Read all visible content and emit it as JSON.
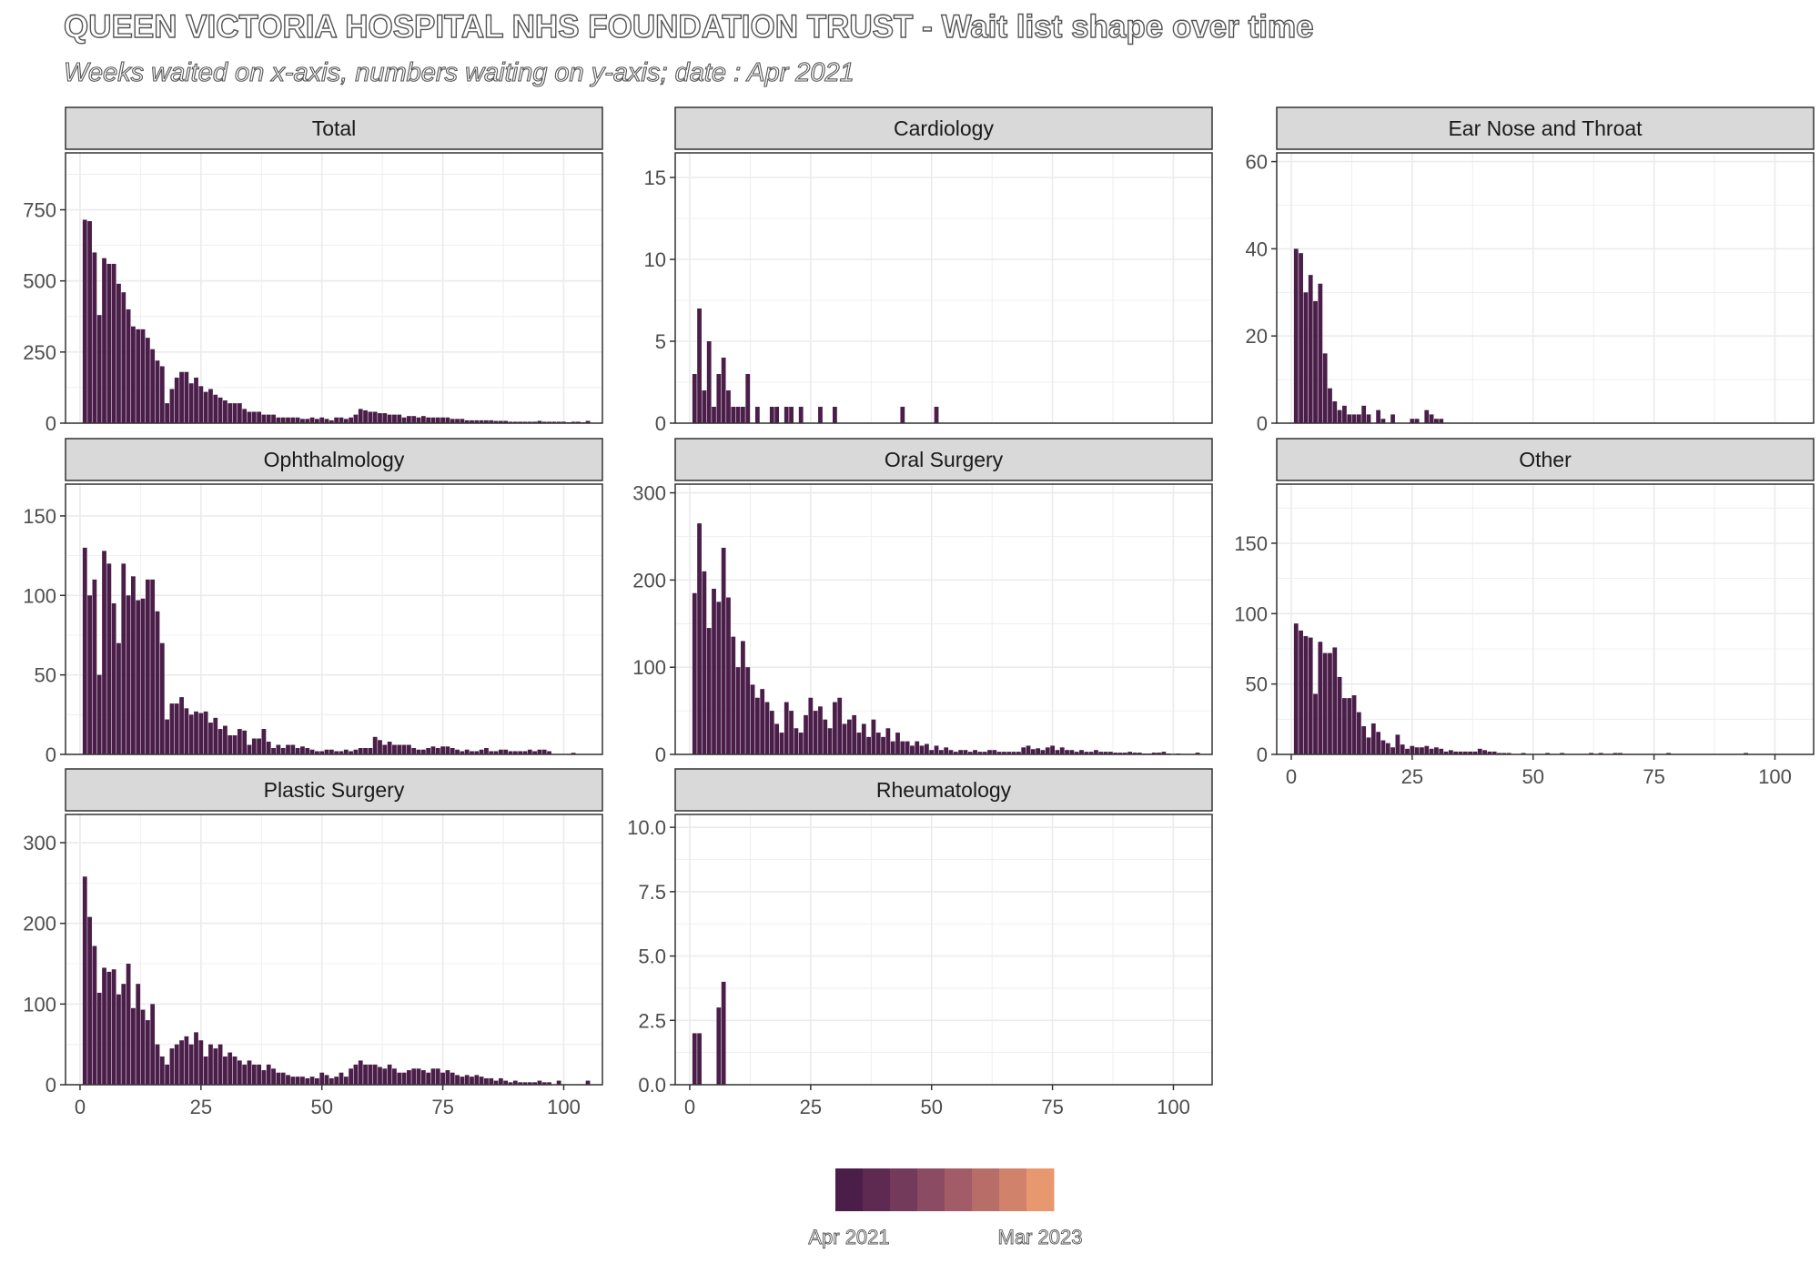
{
  "title": "QUEEN VICTORIA HOSPITAL NHS FOUNDATION TRUST - Wait list shape over time",
  "subtitle": "Weeks waited on x-axis, numbers waiting on y-axis; date : Apr 2021",
  "colors": {
    "bar": "#4a1e48",
    "strip_bg": "#d9d9d9",
    "grid": "#ebebeb",
    "panel_border": "#333333"
  },
  "legend": {
    "start_label": "Apr 2021",
    "end_label": "Mar 2023",
    "colors": [
      "#4a1e48",
      "#5e2a52",
      "#743a5c",
      "#8a4b63",
      "#a15c67",
      "#b86e68",
      "#d0826b",
      "#e8986e"
    ]
  },
  "chart_data": {
    "type": "bar",
    "layout": "facet-wrap-3-columns",
    "x_axis": {
      "range": [
        -3,
        108
      ],
      "ticks": [
        0,
        25,
        50,
        75,
        100
      ]
    },
    "grid": true,
    "legend_position": "bottom",
    "panels": [
      {
        "name": "Total",
        "ylim": [
          0,
          950
        ],
        "yticks": [
          0,
          250,
          500,
          750
        ],
        "x": [
          1,
          2,
          3,
          4,
          5,
          6,
          7,
          8,
          9,
          10,
          11,
          12,
          13,
          14,
          15,
          16,
          17,
          18,
          19,
          20,
          21,
          22,
          23,
          24,
          25,
          26,
          27,
          28,
          29,
          30,
          31,
          32,
          33,
          34,
          35,
          36,
          37,
          38,
          39,
          40,
          41,
          42,
          43,
          44,
          45,
          46,
          47,
          48,
          49,
          50,
          51,
          52,
          53,
          54,
          55,
          56,
          57,
          58,
          59,
          60,
          61,
          62,
          63,
          64,
          65,
          66,
          67,
          68,
          69,
          70,
          71,
          72,
          73,
          74,
          75,
          76,
          77,
          78,
          79,
          80,
          81,
          82,
          83,
          84,
          85,
          86,
          87,
          88,
          89,
          90,
          91,
          92,
          93,
          94,
          95,
          96,
          97,
          98,
          99,
          100,
          101,
          102,
          103,
          104,
          105
        ],
        "values": [
          715,
          710,
          600,
          380,
          580,
          560,
          560,
          490,
          460,
          400,
          340,
          330,
          330,
          300,
          260,
          220,
          200,
          70,
          120,
          160,
          180,
          180,
          140,
          160,
          130,
          110,
          120,
          100,
          90,
          80,
          70,
          70,
          70,
          50,
          40,
          40,
          40,
          30,
          30,
          30,
          20,
          20,
          20,
          20,
          20,
          15,
          15,
          20,
          15,
          20,
          15,
          10,
          20,
          20,
          15,
          20,
          30,
          50,
          45,
          40,
          40,
          35,
          35,
          30,
          30,
          30,
          20,
          25,
          25,
          20,
          25,
          20,
          20,
          20,
          20,
          20,
          15,
          15,
          15,
          10,
          10,
          10,
          10,
          10,
          10,
          8,
          8,
          8,
          5,
          5,
          5,
          5,
          5,
          5,
          8,
          5,
          5,
          5,
          5,
          5,
          3,
          5,
          5,
          3,
          8
        ]
      },
      {
        "name": "Cardiology",
        "ylim": [
          0,
          16.5
        ],
        "yticks": [
          0,
          5,
          10,
          15
        ],
        "x": [
          1,
          2,
          3,
          4,
          5,
          6,
          7,
          8,
          9,
          10,
          11,
          12,
          14,
          17,
          18,
          20,
          21,
          23,
          27,
          30,
          44,
          51
        ],
        "values": [
          3,
          7,
          2,
          5,
          1,
          3,
          4,
          2,
          1,
          1,
          1,
          3,
          1,
          1,
          1,
          1,
          1,
          1,
          1,
          1,
          1,
          1
        ]
      },
      {
        "name": "Ear Nose and Throat",
        "ylim": [
          0,
          62
        ],
        "yticks": [
          0,
          20,
          40,
          60
        ],
        "x": [
          1,
          2,
          3,
          4,
          5,
          6,
          7,
          8,
          9,
          10,
          11,
          12,
          13,
          14,
          15,
          16,
          18,
          19,
          21,
          25,
          26,
          28,
          29,
          30,
          31
        ],
        "values": [
          40,
          39,
          30,
          34,
          28,
          32,
          16,
          8,
          5,
          3,
          4,
          2,
          2,
          2,
          4,
          2,
          3,
          1,
          2,
          1,
          1,
          3,
          2,
          1,
          1
        ]
      },
      {
        "name": "Ophthalmology",
        "ylim": [
          0,
          170
        ],
        "yticks": [
          0,
          50,
          100,
          150
        ],
        "x": [
          1,
          2,
          3,
          4,
          5,
          6,
          7,
          8,
          9,
          10,
          11,
          12,
          13,
          14,
          15,
          16,
          17,
          18,
          19,
          20,
          21,
          22,
          23,
          24,
          25,
          26,
          27,
          28,
          29,
          30,
          31,
          32,
          33,
          34,
          35,
          36,
          37,
          38,
          39,
          40,
          41,
          42,
          43,
          44,
          45,
          46,
          47,
          48,
          49,
          50,
          51,
          52,
          53,
          54,
          55,
          56,
          57,
          58,
          59,
          60,
          61,
          62,
          63,
          64,
          65,
          66,
          67,
          68,
          69,
          70,
          71,
          72,
          73,
          74,
          75,
          76,
          77,
          78,
          79,
          80,
          81,
          82,
          83,
          84,
          85,
          86,
          87,
          88,
          89,
          90,
          91,
          92,
          93,
          94,
          95,
          96,
          97,
          98,
          99,
          100,
          101,
          102,
          103,
          104,
          105
        ],
        "values": [
          130,
          100,
          110,
          50,
          128,
          120,
          95,
          70,
          120,
          100,
          112,
          97,
          98,
          110,
          110,
          90,
          70,
          22,
          32,
          32,
          36,
          29,
          25,
          27,
          26,
          27,
          20,
          23,
          16,
          18,
          12,
          12,
          16,
          15,
          6,
          10,
          10,
          16,
          8,
          4,
          6,
          4,
          6,
          6,
          4,
          5,
          4,
          3,
          2,
          2,
          3,
          3,
          2,
          2,
          3,
          2,
          3,
          4,
          4,
          4,
          11,
          9,
          6,
          8,
          6,
          6,
          6,
          6,
          4,
          3,
          3,
          4,
          5,
          4,
          5,
          5,
          4,
          3,
          2,
          3,
          2,
          2,
          3,
          4,
          2,
          2,
          3,
          3,
          2,
          2,
          2,
          2,
          3,
          2,
          3,
          3,
          2,
          0,
          0,
          0,
          0,
          1,
          0,
          0,
          0
        ]
      },
      {
        "name": "Oral Surgery",
        "ylim": [
          0,
          310
        ],
        "yticks": [
          0,
          100,
          200,
          300
        ],
        "x": [
          1,
          2,
          3,
          4,
          5,
          6,
          7,
          8,
          9,
          10,
          11,
          12,
          13,
          14,
          15,
          16,
          17,
          18,
          19,
          20,
          21,
          22,
          23,
          24,
          25,
          26,
          27,
          28,
          29,
          30,
          31,
          32,
          33,
          34,
          35,
          36,
          37,
          38,
          39,
          40,
          41,
          42,
          43,
          44,
          45,
          46,
          47,
          48,
          49,
          50,
          51,
          52,
          53,
          54,
          55,
          56,
          57,
          58,
          59,
          60,
          61,
          62,
          63,
          64,
          65,
          66,
          67,
          68,
          69,
          70,
          71,
          72,
          73,
          74,
          75,
          76,
          77,
          78,
          79,
          80,
          81,
          82,
          83,
          84,
          85,
          86,
          87,
          88,
          89,
          90,
          91,
          92,
          93,
          94,
          95,
          96,
          97,
          98,
          99,
          100,
          101,
          102,
          103,
          104,
          105
        ],
        "values": [
          185,
          265,
          210,
          145,
          190,
          175,
          237,
          180,
          135,
          100,
          130,
          100,
          80,
          65,
          75,
          60,
          50,
          35,
          25,
          60,
          50,
          30,
          25,
          45,
          65,
          50,
          55,
          40,
          30,
          60,
          65,
          35,
          40,
          45,
          25,
          35,
          20,
          40,
          25,
          20,
          30,
          15,
          25,
          15,
          15,
          10,
          15,
          10,
          12,
          5,
          10,
          5,
          8,
          5,
          3,
          5,
          5,
          3,
          5,
          3,
          3,
          5,
          5,
          3,
          3,
          3,
          3,
          3,
          8,
          10,
          6,
          7,
          5,
          8,
          10,
          5,
          8,
          5,
          5,
          3,
          5,
          3,
          3,
          5,
          3,
          3,
          3,
          2,
          2,
          2,
          3,
          2,
          2,
          1,
          1,
          2,
          2,
          3,
          1,
          0,
          1,
          0,
          0,
          0,
          2
        ]
      },
      {
        "name": "Other",
        "ylim": [
          0,
          192
        ],
        "yticks": [
          0,
          50,
          100,
          150
        ],
        "x": [
          1,
          2,
          3,
          4,
          5,
          6,
          7,
          8,
          9,
          10,
          11,
          12,
          13,
          14,
          15,
          16,
          17,
          18,
          19,
          20,
          21,
          22,
          23,
          24,
          25,
          26,
          27,
          28,
          29,
          30,
          31,
          32,
          33,
          34,
          35,
          36,
          37,
          38,
          39,
          40,
          41,
          42,
          43,
          44,
          45,
          48,
          53,
          56,
          62,
          64,
          67,
          68,
          78,
          94
        ],
        "values": [
          93,
          88,
          84,
          83,
          43,
          80,
          72,
          72,
          76,
          55,
          40,
          40,
          42,
          30,
          20,
          12,
          22,
          16,
          10,
          8,
          5,
          14,
          7,
          4,
          6,
          5,
          5,
          6,
          4,
          5,
          4,
          2,
          3,
          2,
          2,
          2,
          2,
          2,
          4,
          3,
          2,
          2,
          1,
          1,
          1,
          1,
          1,
          1,
          1,
          1,
          1,
          1,
          1,
          1
        ]
      },
      {
        "name": "Plastic Surgery",
        "ylim": [
          0,
          335
        ],
        "yticks": [
          0,
          100,
          200,
          300
        ],
        "x": [
          1,
          2,
          3,
          4,
          5,
          6,
          7,
          8,
          9,
          10,
          11,
          12,
          13,
          14,
          15,
          16,
          17,
          18,
          19,
          20,
          21,
          22,
          23,
          24,
          25,
          26,
          27,
          28,
          29,
          30,
          31,
          32,
          33,
          34,
          35,
          36,
          37,
          38,
          39,
          40,
          41,
          42,
          43,
          44,
          45,
          46,
          47,
          48,
          49,
          50,
          51,
          52,
          53,
          54,
          55,
          56,
          57,
          58,
          59,
          60,
          61,
          62,
          63,
          64,
          65,
          66,
          67,
          68,
          69,
          70,
          71,
          72,
          73,
          74,
          75,
          76,
          77,
          78,
          79,
          80,
          81,
          82,
          83,
          84,
          85,
          86,
          87,
          88,
          89,
          90,
          91,
          92,
          93,
          94,
          95,
          96,
          97,
          98,
          99,
          100,
          101,
          102,
          103,
          104,
          105
        ],
        "values": [
          258,
          208,
          172,
          114,
          145,
          140,
          143,
          112,
          125,
          150,
          95,
          125,
          93,
          80,
          100,
          50,
          35,
          25,
          45,
          50,
          55,
          60,
          50,
          65,
          55,
          35,
          50,
          45,
          50,
          35,
          40,
          35,
          30,
          25,
          30,
          25,
          25,
          18,
          25,
          20,
          15,
          15,
          12,
          10,
          10,
          10,
          8,
          10,
          8,
          15,
          12,
          8,
          10,
          15,
          10,
          20,
          25,
          30,
          25,
          25,
          25,
          22,
          20,
          25,
          20,
          15,
          15,
          18,
          20,
          20,
          18,
          15,
          20,
          20,
          15,
          18,
          15,
          12,
          10,
          12,
          10,
          12,
          10,
          8,
          8,
          5,
          8,
          5,
          3,
          5,
          3,
          3,
          3,
          3,
          5,
          3,
          3,
          0,
          5,
          0,
          0,
          0,
          0,
          0,
          5
        ]
      },
      {
        "name": "Rheumatology",
        "ylim": [
          0,
          10.5
        ],
        "yticks": [
          0,
          2.5,
          5,
          7.5,
          10
        ],
        "ytick_labels": [
          "0.0",
          "2.5",
          "5.0",
          "7.5",
          "10.0"
        ],
        "x": [
          1,
          2,
          6,
          7
        ],
        "values": [
          2,
          2,
          3,
          4
        ]
      }
    ]
  }
}
